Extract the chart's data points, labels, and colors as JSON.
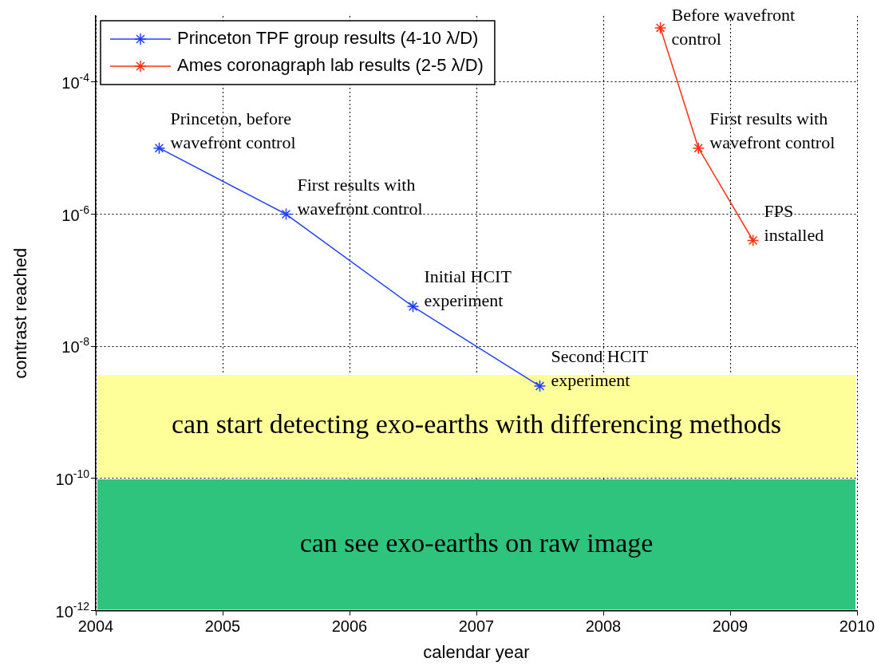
{
  "chart_data": {
    "type": "line",
    "xlabel": "calendar year",
    "ylabel": "contrast reached",
    "log": "y",
    "grid": true,
    "legend": "top left",
    "marker": "cross",
    "line_style": "solid",
    "xlim": [
      2004,
      2010
    ],
    "xticks": [
      2004,
      2005,
      2006,
      2007,
      2008,
      2009,
      2010
    ],
    "ylim": [
      1e-12,
      0.001
    ],
    "yticks": [
      {
        "value": 1e-12,
        "label": "10$^{-12}$"
      },
      {
        "value": 1e-10,
        "label": "10$^{-10}$"
      },
      {
        "value": 1e-08,
        "label": "10$^{-8}$"
      },
      {
        "value": 1e-06,
        "label": "10$^{-6}$"
      },
      {
        "value": 0.0001,
        "label": "10$^{-4}$"
      }
    ],
    "series": [
      {
        "name": "Princeton TPF group results (4-10 λ/D)",
        "color": "#2040ff",
        "x": [
          2004.5,
          2005.5,
          2006.5,
          2007.5
        ],
        "values": [
          1e-05,
          1e-06,
          4e-08,
          2.5e-09
        ]
      },
      {
        "name": "Ames coronagraph lab results (2-5 λ/D)",
        "color": "#ff3010",
        "x": [
          2008.45,
          2008.75,
          2009.18
        ],
        "values": [
          0.00066,
          1e-05,
          4e-07
        ]
      }
    ],
    "bands": [
      {
        "axis": "y",
        "from": 3.8e-09,
        "to": 1e-10,
        "label": "can start detecting exo-earths with differencing methods",
        "color": "#ffff99"
      },
      {
        "axis": "y",
        "from": 1e-10,
        "to": 1e-12,
        "label": "can see exo-earths on raw image",
        "color": "#2ec47e"
      }
    ],
    "annotations": [
      {
        "text": "Princeton, before\nwavefront control",
        "x": 2004.5,
        "y": 1e-05
      },
      {
        "text": "First results with\nwavefront control",
        "x": 2005.5,
        "y": 1e-06
      },
      {
        "text": "Initial HCIT\nexperiment",
        "x": 2006.5,
        "y": 4e-08
      },
      {
        "text": "Second HCIT\nexperiment",
        "x": 2007.5,
        "y": 2.5e-09
      },
      {
        "text": "Before wavefront\ncontrol",
        "x": 2008.45,
        "y": 0.00066
      },
      {
        "text": "First results with\nwavefront control",
        "x": 2008.75,
        "y": 1e-05
      },
      {
        "text": "FPS\ninstalled",
        "x": 2009.18,
        "y": 4e-07
      }
    ]
  }
}
